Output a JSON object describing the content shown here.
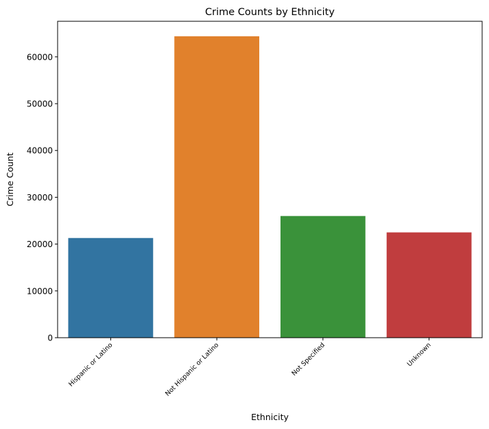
{
  "chart_data": {
    "type": "bar",
    "title": "Crime Counts by Ethnicity",
    "xlabel": "Ethnicity",
    "ylabel": "Crime Count",
    "categories": [
      "Hispanic or Latino",
      "Not Hispanic or Latino",
      "Not Specified",
      "Unknown"
    ],
    "values": [
      21300,
      64400,
      26000,
      22500
    ],
    "colors": [
      "#3274a1",
      "#e1812c",
      "#3a923a",
      "#c03d3e"
    ],
    "yticks": [
      0,
      10000,
      20000,
      30000,
      40000,
      50000,
      60000
    ],
    "ylim": [
      0,
      67600
    ],
    "grid": false,
    "legend": "none"
  }
}
